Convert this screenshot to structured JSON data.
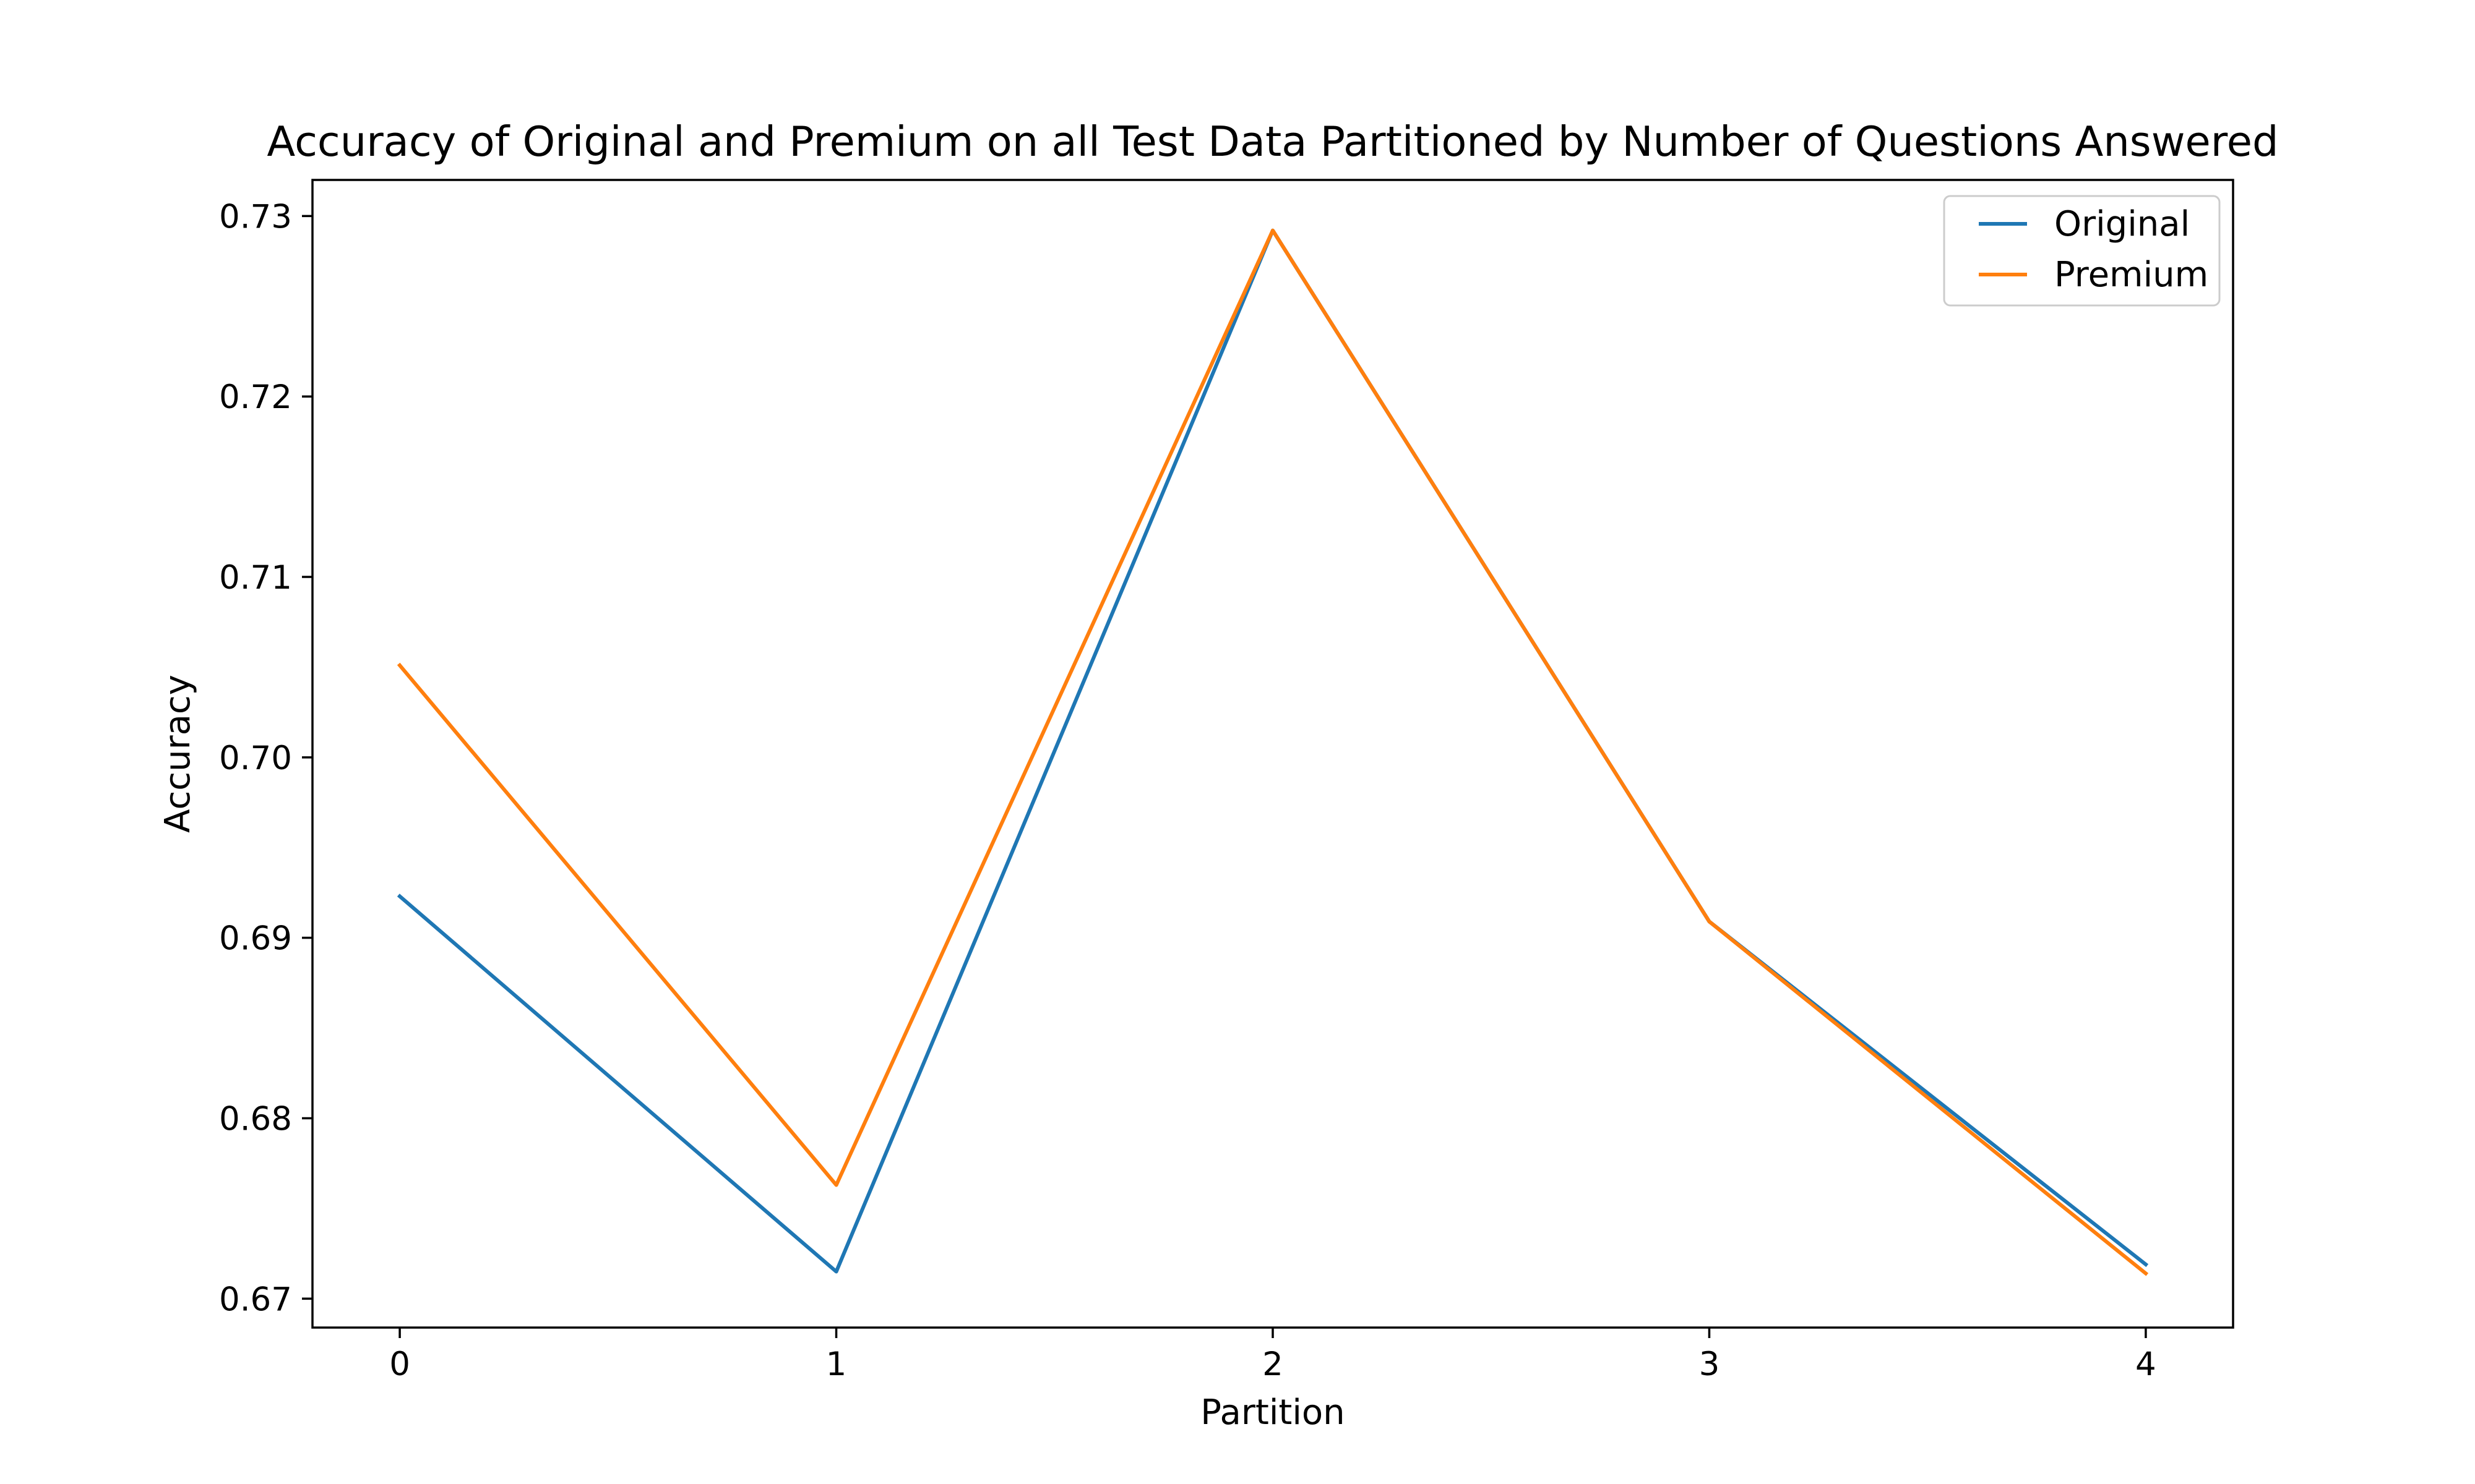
{
  "chart_data": {
    "type": "line",
    "title": "Accuracy of Original and Premium on all Test Data Partitioned by Number of Questions Answered",
    "xlabel": "Partition",
    "ylabel": "Accuracy",
    "x": [
      0,
      1,
      2,
      3,
      4
    ],
    "xticks": [
      "0",
      "1",
      "2",
      "3",
      "4"
    ],
    "yticks": [
      "0.67",
      "0.68",
      "0.69",
      "0.70",
      "0.71",
      "0.72",
      "0.73"
    ],
    "xlim": [
      -0.2,
      4.2
    ],
    "ylim": [
      0.6684,
      0.732
    ],
    "grid": false,
    "legend_position": "top-right",
    "series": [
      {
        "name": "Original",
        "color": "#1f77b4",
        "values": [
          0.6923,
          0.6715,
          0.7292,
          0.6909,
          0.6719
        ]
      },
      {
        "name": "Premium",
        "color": "#ff7f0e",
        "values": [
          0.7051,
          0.6763,
          0.7292,
          0.6909,
          0.6714
        ]
      }
    ]
  }
}
